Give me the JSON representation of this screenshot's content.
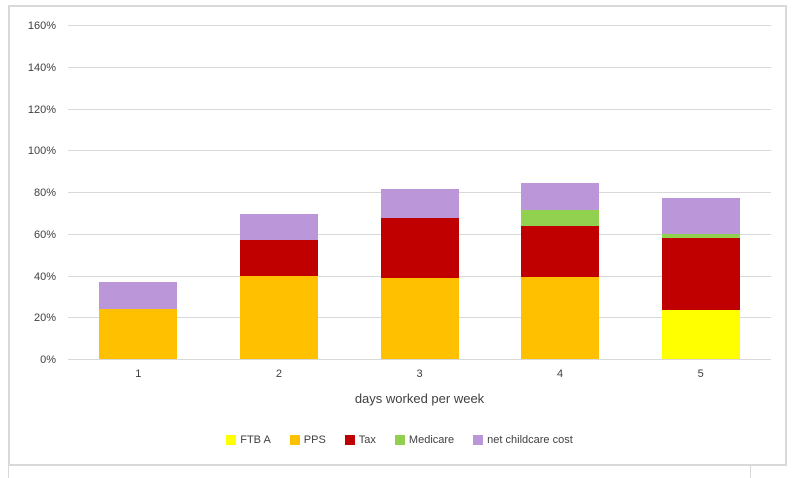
{
  "chart_data": {
    "type": "bar",
    "stacked": true,
    "title": "",
    "xlabel": "days worked per week",
    "ylabel": "",
    "categories": [
      "1",
      "2",
      "3",
      "4",
      "5"
    ],
    "series": [
      {
        "name": "FTB A",
        "color": "#FFFF00",
        "values": [
          0,
          0,
          0,
          0,
          23.5
        ]
      },
      {
        "name": "PPS",
        "color": "#FFC000",
        "values": [
          24,
          40,
          39,
          39.5,
          0
        ]
      },
      {
        "name": "Tax",
        "color": "#C00000",
        "values": [
          0,
          17,
          28.5,
          24,
          34.5
        ]
      },
      {
        "name": "Medicare",
        "color": "#92D050",
        "values": [
          0,
          0,
          0,
          8,
          2
        ]
      },
      {
        "name": "net childcare cost",
        "color": "#BB96D8",
        "values": [
          13,
          12.5,
          14,
          13,
          17
        ]
      }
    ],
    "ylim": [
      0,
      160
    ],
    "y_step": 20,
    "y_ticks": [
      "0%",
      "20%",
      "40%",
      "60%",
      "80%",
      "100%",
      "120%",
      "140%",
      "160%"
    ],
    "grid": true,
    "legend_position": "bottom",
    "gridline_color": "#D9D9D9",
    "text_color": "#404040",
    "bar_totals": [
      37,
      69.5,
      81.5,
      84.5,
      77
    ]
  }
}
